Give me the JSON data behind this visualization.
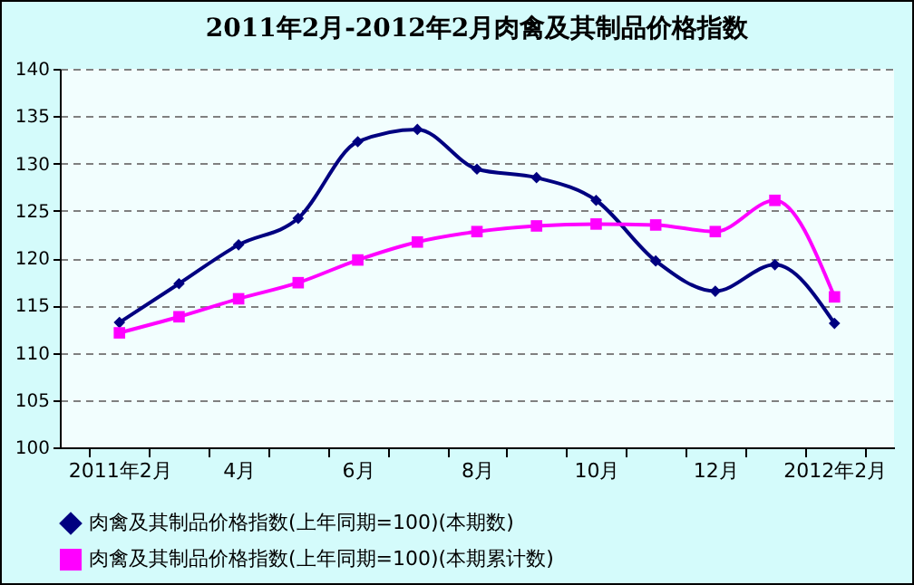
{
  "chart_data": {
    "type": "line",
    "title": "2011年2月-2012年2月肉禽及其制品价格指数",
    "categories": [
      "2011年2月",
      null,
      "4月",
      null,
      "6月",
      null,
      "8月",
      null,
      "10月",
      null,
      "12月",
      null,
      "2012年2月"
    ],
    "series": [
      {
        "name": "肉禽及其制品价格指数(上年同期=100)(本期数)",
        "color": "#000080",
        "marker": "diamond",
        "values": [
          113.2,
          117.3,
          121.4,
          124.2,
          132.3,
          133.6,
          129.4,
          128.5,
          126.1,
          119.7,
          116.5,
          119.3,
          113.1
        ]
      },
      {
        "name": "肉禽及其制品价格指数(上年同期=100)(本期累计数)",
        "color": "#ff00ff",
        "marker": "square",
        "values": [
          112.1,
          113.8,
          115.7,
          117.4,
          119.8,
          121.7,
          122.8,
          123.4,
          123.6,
          123.5,
          122.8,
          126.1,
          115.9
        ]
      }
    ],
    "ylim": [
      100,
      140
    ],
    "yticks": [
      100,
      105,
      110,
      115,
      120,
      125,
      130,
      135,
      140
    ],
    "grid": "y",
    "legend": "bottom",
    "line_style": "solid"
  }
}
